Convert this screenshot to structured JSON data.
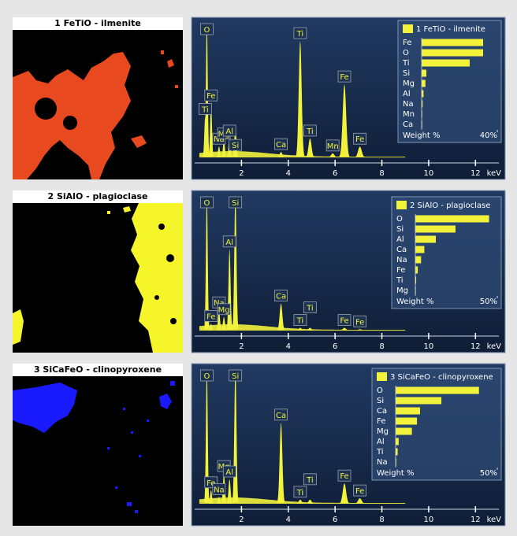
{
  "chart_data": [
    {
      "type": "area",
      "title": "1 FeTiO - ilmenite",
      "color": "#f2f23a",
      "x": [
        0.45,
        0.52,
        0.7,
        1.04,
        1.25,
        1.49,
        1.74,
        3.69,
        4.51,
        4.93,
        5.9,
        6.4,
        7.06
      ],
      "values": [
        30,
        100,
        40,
        8,
        12,
        14,
        22,
        4,
        86,
        14,
        3,
        54,
        8
      ],
      "peak_labels": [
        "Ti",
        "O",
        "Fe",
        "Na",
        "Mg",
        "Al",
        "Si",
        "Ca",
        "Ti",
        "Ti",
        "Mn",
        "Fe",
        "Fe"
      ],
      "xlim": [
        0,
        13
      ],
      "xticks": [
        2,
        4,
        6,
        8,
        10,
        12
      ],
      "xlabel": "keV",
      "ylim": [
        0,
        100
      ],
      "weights": {
        "type": "bar",
        "categories": [
          "Fe",
          "O",
          "Ti",
          "Si",
          "Mg",
          "Al",
          "Na",
          "Mn",
          "Ca"
        ],
        "values": [
          32.5,
          32.5,
          25.4,
          2.5,
          2,
          1,
          0.5,
          0.3,
          0.3
        ],
        "xlim": [
          0,
          40
        ],
        "xticks": [
          {
            "value": 40,
            "label": "40%"
          }
        ],
        "xlabel": "Weight %"
      }
    },
    {
      "type": "area",
      "title": "2 SiAlO - plagioclase",
      "color": "#f2f23a",
      "x": [
        0.52,
        0.7,
        1.04,
        1.25,
        1.49,
        1.74,
        3.69,
        4.51,
        4.93,
        6.4,
        7.06
      ],
      "values": [
        100,
        5,
        15,
        10,
        60,
        100,
        20,
        2,
        2,
        2,
        1
      ],
      "peak_labels": [
        "O",
        "Fe",
        "Na",
        "Mg",
        "Al",
        "Si",
        "Ca",
        "Ti",
        "Ti",
        "Fe",
        "Fe"
      ],
      "xlim": [
        0,
        13
      ],
      "xticks": [
        2,
        4,
        6,
        8,
        10,
        12
      ],
      "xlabel": "keV",
      "ylim": [
        0,
        100
      ],
      "weights": {
        "type": "bar",
        "categories": [
          "O",
          "Si",
          "Al",
          "Ca",
          "Na",
          "Fe",
          "Ti",
          "Mg"
        ],
        "values": [
          45,
          24.5,
          12.5,
          5.5,
          3.5,
          1.5,
          0.5,
          0.3
        ],
        "xlim": [
          0,
          50
        ],
        "xticks": [
          {
            "value": 50,
            "label": "50%"
          }
        ],
        "xlabel": "Weight %"
      }
    },
    {
      "type": "area",
      "title": "3 SiCaFeO - clinopyroxene",
      "color": "#f2f23a",
      "x": [
        0.52,
        0.7,
        1.04,
        1.25,
        1.49,
        1.74,
        3.69,
        4.51,
        4.93,
        6.4,
        7.06
      ],
      "values": [
        100,
        10,
        5,
        22,
        18,
        100,
        60,
        3,
        3,
        15,
        4
      ],
      "peak_labels": [
        "O",
        "Fe",
        "Na",
        "Mg",
        "Al",
        "Si",
        "Ca",
        "Ti",
        "Ti",
        "Fe",
        "Fe"
      ],
      "xlim": [
        0,
        13
      ],
      "xticks": [
        2,
        4,
        6,
        8,
        10,
        12
      ],
      "xlabel": "keV",
      "ylim": [
        0,
        100
      ],
      "weights": {
        "type": "bar",
        "categories": [
          "O",
          "Si",
          "Ca",
          "Fe",
          "Mg",
          "Al",
          "Ti",
          "Na"
        ],
        "values": [
          41,
          22.5,
          12,
          10.5,
          8,
          1.5,
          1,
          0.3
        ],
        "xlim": [
          0,
          50
        ],
        "xticks": [
          {
            "value": 50,
            "label": "50%"
          }
        ],
        "xlabel": "Weight %"
      }
    }
  ]
}
